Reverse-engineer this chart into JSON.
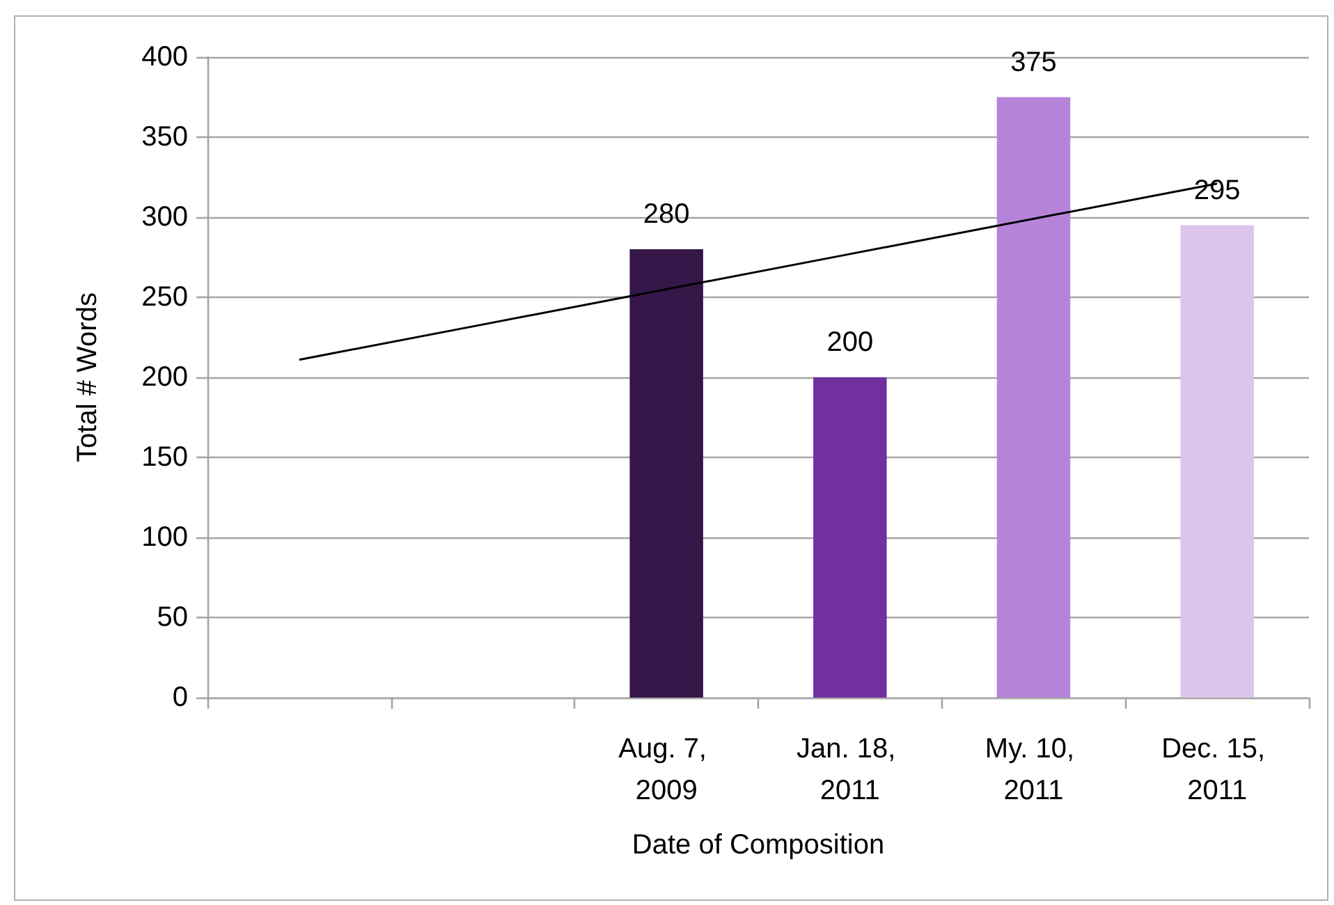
{
  "chart_data": {
    "type": "bar",
    "xlabel": "Date of Composition",
    "ylabel": "Total # Words",
    "categories": [
      null,
      null,
      "Aug. 7, 2009",
      "Jan. 18, 2011",
      "My. 10, 2011",
      "Dec. 15, 2011"
    ],
    "series": [
      {
        "values": [
          null,
          null,
          280,
          200,
          375,
          295
        ],
        "colors": [
          null,
          null,
          "#341748",
          "#7030a0",
          "#b584d9",
          "#dcc5ee"
        ],
        "data_labels": true
      },
      {
        "type": "line",
        "color": "#000000",
        "values": [
          211,
          233,
          255,
          277,
          299,
          321
        ],
        "marker": "none",
        "line_style": "solid"
      }
    ],
    "ylim": [
      0,
      400
    ],
    "yticks": [
      0,
      50,
      100,
      150,
      200,
      250,
      300,
      350,
      400
    ],
    "grid": "y"
  }
}
